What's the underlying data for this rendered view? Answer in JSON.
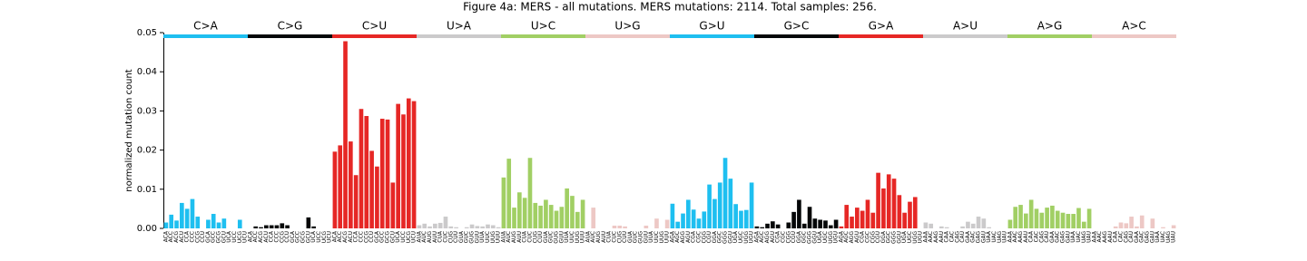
{
  "chart_data": {
    "type": "bar",
    "title": "Figure 4a: MERS - all mutations. MERS mutations: 2114. Total samples: 256.",
    "ylabel": "normalized mutation count",
    "ylim": [
      0,
      0.05
    ],
    "yticks": [
      {
        "value": 0,
        "label": "0.00"
      },
      {
        "value": 0.01,
        "label": "0.01"
      },
      {
        "value": 0.02,
        "label": "0.02"
      },
      {
        "value": 0.03,
        "label": "0.03"
      },
      {
        "value": 0.04,
        "label": "0.04"
      },
      {
        "value": 0.05,
        "label": "0.05"
      }
    ],
    "groups": [
      {
        "name": "C>A",
        "color": "#1ebff0",
        "categories": [
          "ACA",
          "ACC",
          "ACG",
          "ACU",
          "CCA",
          "CCC",
          "CCG",
          "CCU",
          "GCA",
          "GCC",
          "GCG",
          "GCU",
          "UCA",
          "UCC",
          "UCG",
          "UCU"
        ],
        "values": [
          0.0015,
          0.0035,
          0.002,
          0.0065,
          0.005,
          0.0075,
          0.003,
          0,
          0.0022,
          0.0037,
          0.0015,
          0.0025,
          0,
          0,
          0.0022,
          0
        ]
      },
      {
        "name": "C>G",
        "color": "#050708",
        "categories": [
          "ACA",
          "ACC",
          "ACG",
          "ACU",
          "CCA",
          "CCC",
          "CCG",
          "CCU",
          "GCA",
          "GCC",
          "GCG",
          "GCU",
          "UCA",
          "UCC",
          "UCG",
          "UCU"
        ],
        "values": [
          0,
          0.0005,
          0.0003,
          0.0008,
          0.0008,
          0.0008,
          0.0013,
          0.0008,
          0,
          0,
          0,
          0.0028,
          0.0005,
          0,
          0,
          0
        ]
      },
      {
        "name": "C>U",
        "color": "#e62725",
        "categories": [
          "ACA",
          "ACC",
          "ACG",
          "ACU",
          "CCA",
          "CCC",
          "CCG",
          "CCU",
          "GCA",
          "GCC",
          "GCG",
          "GCU",
          "UCA",
          "UCC",
          "UCG",
          "UCU"
        ],
        "values": [
          0.0196,
          0.0212,
          0.0478,
          0.0222,
          0.0136,
          0.0305,
          0.0287,
          0.0198,
          0.0158,
          0.028,
          0.0278,
          0.0117,
          0.0318,
          0.0291,
          0.0332,
          0.0325
        ]
      },
      {
        "name": "U>A",
        "color": "#cbcacb",
        "categories": [
          "AUA",
          "AUC",
          "AUG",
          "AUU",
          "CUA",
          "CUC",
          "CUG",
          "CUU",
          "GUA",
          "GUC",
          "GUG",
          "GUU",
          "UUA",
          "UUC",
          "UUG",
          "UUU"
        ],
        "values": [
          0.0008,
          0.0012,
          0.0005,
          0.0012,
          0.0014,
          0.003,
          0.0005,
          0.0003,
          0,
          0.0003,
          0.001,
          0.0006,
          0.0005,
          0.001,
          0.0008,
          0.0003
        ]
      },
      {
        "name": "U>C",
        "color": "#a1cf64",
        "categories": [
          "AUA",
          "AUC",
          "AUG",
          "AUU",
          "CUA",
          "CUC",
          "CUG",
          "CUU",
          "GUA",
          "GUC",
          "GUG",
          "GUU",
          "UUA",
          "UUC",
          "UUG",
          "UUU"
        ],
        "values": [
          0.013,
          0.0178,
          0.0053,
          0.0092,
          0.0078,
          0.018,
          0.0065,
          0.0058,
          0.0073,
          0.006,
          0.0045,
          0.0055,
          0.0102,
          0.0083,
          0.0042,
          0.0073
        ]
      },
      {
        "name": "U>G",
        "color": "#edc8c5",
        "categories": [
          "AUA",
          "AUC",
          "AUG",
          "AUU",
          "CUA",
          "CUC",
          "CUG",
          "CUU",
          "GUA",
          "GUC",
          "GUG",
          "GUU",
          "UUA",
          "UUC",
          "UUG",
          "UUU"
        ],
        "values": [
          0,
          0.0053,
          0,
          0,
          0,
          0.0007,
          0.0007,
          0.0005,
          0,
          0,
          0,
          0.0007,
          0,
          0.0025,
          0,
          0.0022
        ]
      },
      {
        "name": "G>U",
        "color": "#1ebff0",
        "categories": [
          "AGA",
          "AGC",
          "AGG",
          "AGU",
          "CGA",
          "CGC",
          "CGG",
          "CGU",
          "GGA",
          "GGC",
          "GGG",
          "GGU",
          "UGA",
          "UGC",
          "UGG",
          "UGU"
        ],
        "values": [
          0.0063,
          0.0017,
          0.0038,
          0.0073,
          0.0048,
          0.0025,
          0.0043,
          0.0112,
          0.0075,
          0.0117,
          0.018,
          0.0127,
          0.0062,
          0.0045,
          0.0047,
          0.0117
        ]
      },
      {
        "name": "G>C",
        "color": "#050708",
        "categories": [
          "AGA",
          "AGC",
          "AGG",
          "AGU",
          "CGA",
          "CGC",
          "CGG",
          "CGU",
          "GGA",
          "GGC",
          "GGG",
          "GGU",
          "UGA",
          "UGC",
          "UGG",
          "UGU"
        ],
        "values": [
          0.0005,
          0.0003,
          0.0012,
          0.0018,
          0.001,
          0,
          0.0015,
          0.0042,
          0.0073,
          0.0012,
          0.0055,
          0.0025,
          0.0022,
          0.002,
          0.0008,
          0.0022
        ]
      },
      {
        "name": "G>A",
        "color": "#e62725",
        "categories": [
          "AGA",
          "AGC",
          "AGG",
          "AGU",
          "CGA",
          "CGC",
          "CGG",
          "CGU",
          "GGA",
          "GGC",
          "GGG",
          "GGU",
          "UGA",
          "UGC",
          "UGG",
          "UGU"
        ],
        "values": [
          0.0005,
          0.006,
          0.003,
          0.0053,
          0.0045,
          0.0073,
          0.004,
          0.0142,
          0.0102,
          0.0138,
          0.0127,
          0.0085,
          0.004,
          0.0068,
          0.008,
          0
        ]
      },
      {
        "name": "A>U",
        "color": "#cbcacb",
        "categories": [
          "AAA",
          "AAC",
          "AAG",
          "AAU",
          "CAA",
          "CAC",
          "CAG",
          "CAU",
          "GAA",
          "GAC",
          "GAG",
          "GAU",
          "UAA",
          "UAC",
          "UAG",
          "UAU"
        ],
        "values": [
          0.0015,
          0.0012,
          0,
          0.0005,
          0.0003,
          0,
          0,
          0.0005,
          0.0017,
          0.0012,
          0.003,
          0.0025,
          0.0003,
          0,
          0,
          0
        ]
      },
      {
        "name": "A>G",
        "color": "#a1cf64",
        "categories": [
          "AAA",
          "AAC",
          "AAG",
          "AAU",
          "CAA",
          "CAC",
          "CAG",
          "CAU",
          "GAA",
          "GAC",
          "GAG",
          "GAU",
          "UAA",
          "UAC",
          "UAG",
          "UAU"
        ],
        "values": [
          0.0022,
          0.0055,
          0.006,
          0.0038,
          0.0073,
          0.005,
          0.004,
          0.0053,
          0.0058,
          0.0045,
          0.004,
          0.0037,
          0.0037,
          0.0052,
          0.0017,
          0.005
        ]
      },
      {
        "name": "A>C",
        "color": "#edc8c5",
        "categories": [
          "AAA",
          "AAC",
          "AAG",
          "AAU",
          "CAA",
          "CAC",
          "CAG",
          "CAU",
          "GAA",
          "GAC",
          "GAG",
          "GAU",
          "UAA",
          "UAC",
          "UAG",
          "UAU"
        ],
        "values": [
          0,
          0,
          0,
          0,
          0.0005,
          0.0015,
          0.0013,
          0.003,
          0.0005,
          0.0033,
          0,
          0.0025,
          0,
          0.0003,
          0,
          0.0008
        ]
      }
    ]
  }
}
